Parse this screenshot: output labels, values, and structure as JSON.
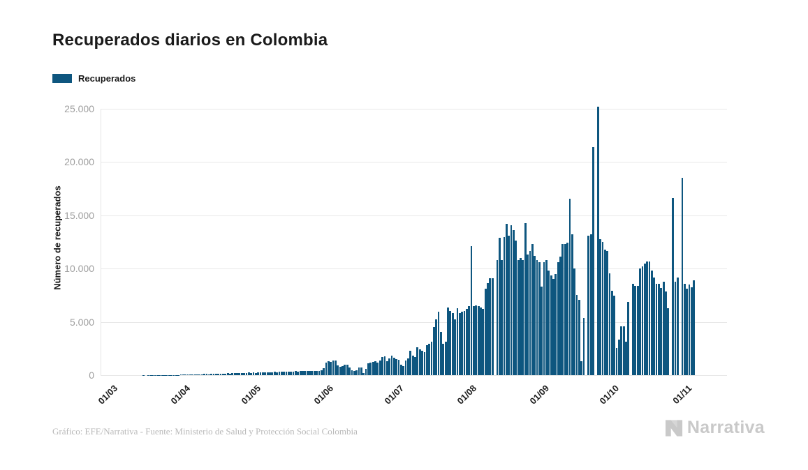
{
  "title": "Recuperados diarios en Colombia",
  "legend": {
    "label": "Recuperados",
    "color": "#0e567f"
  },
  "y_axis": {
    "title": "Número de recuperados",
    "tick_labels": [
      "0",
      "5.000",
      "10.000",
      "15.000",
      "20.000",
      "25.000"
    ],
    "tick_values": [
      0,
      5000,
      10000,
      15000,
      20000,
      25000
    ]
  },
  "x_axis": {
    "tick_labels": [
      "01/03",
      "01/04",
      "01/05",
      "01/06",
      "01/07",
      "01/08",
      "01/09",
      "01/10",
      "01/11"
    ],
    "tick_day_offsets": [
      0,
      31,
      61,
      92,
      122,
      153,
      184,
      214,
      245
    ]
  },
  "footer": {
    "credit": "Gráfico: EFE/Narrativa - Fuente: Ministerio de Salud y Protección Social Colombia"
  },
  "brand": {
    "name": "Narrativa"
  },
  "chart_data": {
    "type": "bar",
    "title": "Recuperados diarios en Colombia",
    "xlabel": "",
    "ylabel": "Número de recuperados",
    "ylim": [
      0,
      25000
    ],
    "grid": "horizontal",
    "legend_position": "top-left",
    "bar_color": "#0e567f",
    "frequency": "daily",
    "start_date": "2020-03-01",
    "end_date": "2020-11-06",
    "series": [
      {
        "name": "Recuperados",
        "values": [
          0,
          0,
          0,
          0,
          0,
          0,
          1,
          1,
          1,
          2,
          2,
          3,
          4,
          3,
          5,
          6,
          5,
          8,
          10,
          8,
          12,
          10,
          15,
          18,
          15,
          20,
          25,
          22,
          28,
          30,
          32,
          40,
          35,
          50,
          45,
          60,
          55,
          70,
          80,
          75,
          90,
          100,
          110,
          95,
          120,
          130,
          115,
          140,
          150,
          135,
          160,
          170,
          155,
          180,
          190,
          175,
          200,
          210,
          195,
          220,
          230,
          215,
          240,
          225,
          250,
          260,
          245,
          270,
          280,
          265,
          290,
          300,
          285,
          310,
          320,
          305,
          330,
          340,
          325,
          350,
          360,
          345,
          370,
          380,
          365,
          390,
          400,
          385,
          410,
          420,
          405,
          430,
          650,
          1150,
          1300,
          1250,
          1400,
          1350,
          900,
          800,
          850,
          1000,
          950,
          700,
          450,
          400,
          430,
          700,
          750,
          200,
          600,
          1100,
          1200,
          1250,
          1300,
          1200,
          1350,
          1700,
          1750,
          1300,
          1600,
          1800,
          1650,
          1500,
          1450,
          950,
          840,
          1400,
          1600,
          2300,
          1830,
          1700,
          2600,
          2400,
          2280,
          2170,
          2830,
          2940,
          3160,
          4490,
          5260,
          5930,
          4050,
          2940,
          3160,
          6370,
          6040,
          5820,
          5260,
          6260,
          5820,
          5930,
          6010,
          6230,
          6450,
          12100,
          6450,
          6560,
          6450,
          6340,
          6230,
          8090,
          8640,
          9080,
          9080,
          0,
          10830,
          12920,
          10830,
          12970,
          14170,
          13080,
          14060,
          13620,
          12640,
          10780,
          11000,
          10780,
          14280,
          11330,
          11660,
          12310,
          11220,
          10790,
          10570,
          8280,
          10570,
          10790,
          9800,
          9370,
          9040,
          9480,
          10570,
          11110,
          12310,
          12310,
          12420,
          16570,
          13190,
          10020,
          7510,
          7070,
          1290,
          5370,
          0,
          13080,
          13230,
          21380,
          0,
          25210,
          12750,
          12530,
          11760,
          11660,
          9580,
          7890,
          7460,
          2580,
          3340,
          4550,
          4600,
          3130,
          6840,
          0,
          8590,
          8370,
          8370,
          10010,
          10230,
          10450,
          10700,
          10670,
          9800,
          9150,
          8600,
          8600,
          8150,
          8800,
          7830,
          6300,
          0,
          16620,
          8800,
          9150,
          0,
          18550,
          8600,
          8100,
          8500,
          8270,
          8930
        ]
      }
    ]
  }
}
